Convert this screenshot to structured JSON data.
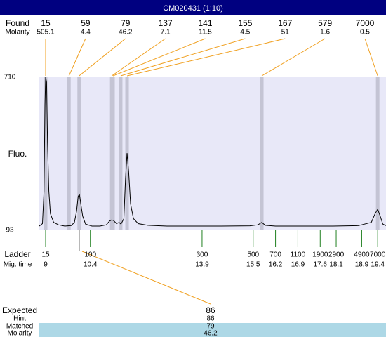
{
  "title": "CM020431 (1:10)",
  "chart_data": {
    "type": "line",
    "y_label": "Fluo.",
    "ylim": [
      93,
      710
    ],
    "yticks": [
      93,
      710
    ],
    "xlim": [
      8.78,
      19.66
    ],
    "color": "#000000",
    "x": [
      8.8,
      8.9,
      8.95,
      8.98,
      9.0,
      9.03,
      9.06,
      9.1,
      9.15,
      9.25,
      9.4,
      9.6,
      9.8,
      9.9,
      9.97,
      10.02,
      10.06,
      10.1,
      10.16,
      10.25,
      10.45,
      10.7,
      10.9,
      11.0,
      11.07,
      11.13,
      11.22,
      11.3,
      11.36,
      11.45,
      11.5,
      11.55,
      11.6,
      11.66,
      11.75,
      11.9,
      12.2,
      12.8,
      13.5,
      14.5,
      15.4,
      15.65,
      15.77,
      15.88,
      16.2,
      17.0,
      18.0,
      18.8,
      19.2,
      19.32,
      19.4,
      19.48,
      19.56,
      19.66
    ],
    "values": [
      110,
      120,
      250,
      600,
      710,
      690,
      450,
      250,
      160,
      125,
      115,
      110,
      112,
      125,
      170,
      230,
      237,
      200,
      150,
      118,
      110,
      110,
      115,
      130,
      135,
      132,
      120,
      125,
      118,
      140,
      300,
      404,
      330,
      200,
      140,
      120,
      113,
      110,
      110,
      110,
      111,
      115,
      125,
      113,
      110,
      110,
      110,
      112,
      125,
      160,
      178,
      150,
      118,
      112
    ],
    "found": {
      "label": "Found",
      "molarity_label": "Molarity",
      "sizes": [
        15,
        59,
        79,
        137,
        141,
        155,
        167,
        579,
        7000
      ],
      "molarity": [
        505.1,
        4.4,
        46.2,
        7.1,
        11.5,
        4.5,
        51,
        1.6,
        0.5
      ],
      "mig_times": [
        9.0,
        9.73,
        10.05,
        11.07,
        11.11,
        11.35,
        11.55,
        15.77,
        19.4
      ],
      "band_color": "#c4c4d4",
      "line_color": "#f0a020"
    },
    "ladder": {
      "label": "Ladder",
      "mig_label": "Mig. time",
      "sizes": [
        15,
        100,
        300,
        500,
        700,
        1100,
        1900,
        2900,
        4900,
        7000
      ],
      "mig_times": [
        9,
        10.4,
        13.9,
        15.5,
        16.2,
        16.9,
        17.6,
        18.1,
        18.9,
        19.4
      ],
      "color": "#208020"
    },
    "expected": {
      "label": "Expected",
      "value": 86,
      "hint_label": "Hint",
      "hint": 86,
      "matched_label": "Matched",
      "matched": 79,
      "molarity_label": "Molarity",
      "molarity": 46.2
    }
  }
}
